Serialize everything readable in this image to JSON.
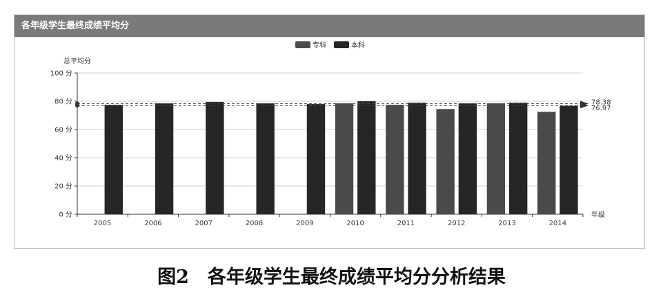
{
  "panel": {
    "title": "各年级学生最终成绩平均分"
  },
  "caption": {
    "label": "图2",
    "text": "各年级学生最终成绩平均分分析结果"
  },
  "chart_data": {
    "type": "bar",
    "ylabel": "总平均分",
    "xlabel": "年级",
    "ylim": [
      0,
      100
    ],
    "yticks": [
      "0 分",
      "20 分",
      "40 分",
      "60 分",
      "80 分",
      "100 分"
    ],
    "ytick_values": [
      0,
      20,
      40,
      60,
      80,
      100
    ],
    "categories": [
      "2005",
      "2006",
      "2007",
      "2008",
      "2009",
      "2010",
      "2011",
      "2012",
      "2013",
      "2014"
    ],
    "series": [
      {
        "name": "专科",
        "color": "#4a4a4a",
        "values": [
          null,
          null,
          null,
          null,
          null,
          78.5,
          77.5,
          74.5,
          78.5,
          72.5
        ]
      },
      {
        "name": "本科",
        "color": "#262626",
        "values": [
          77.5,
          78.5,
          79.5,
          78.5,
          78.0,
          80.0,
          79.0,
          78.5,
          79.0,
          76.8
        ]
      }
    ],
    "mark_lines": [
      {
        "value": 78.38,
        "label": "78.38"
      },
      {
        "value": 76.97,
        "label": "76.97"
      }
    ],
    "legend_position": "top-center",
    "grid": true
  }
}
